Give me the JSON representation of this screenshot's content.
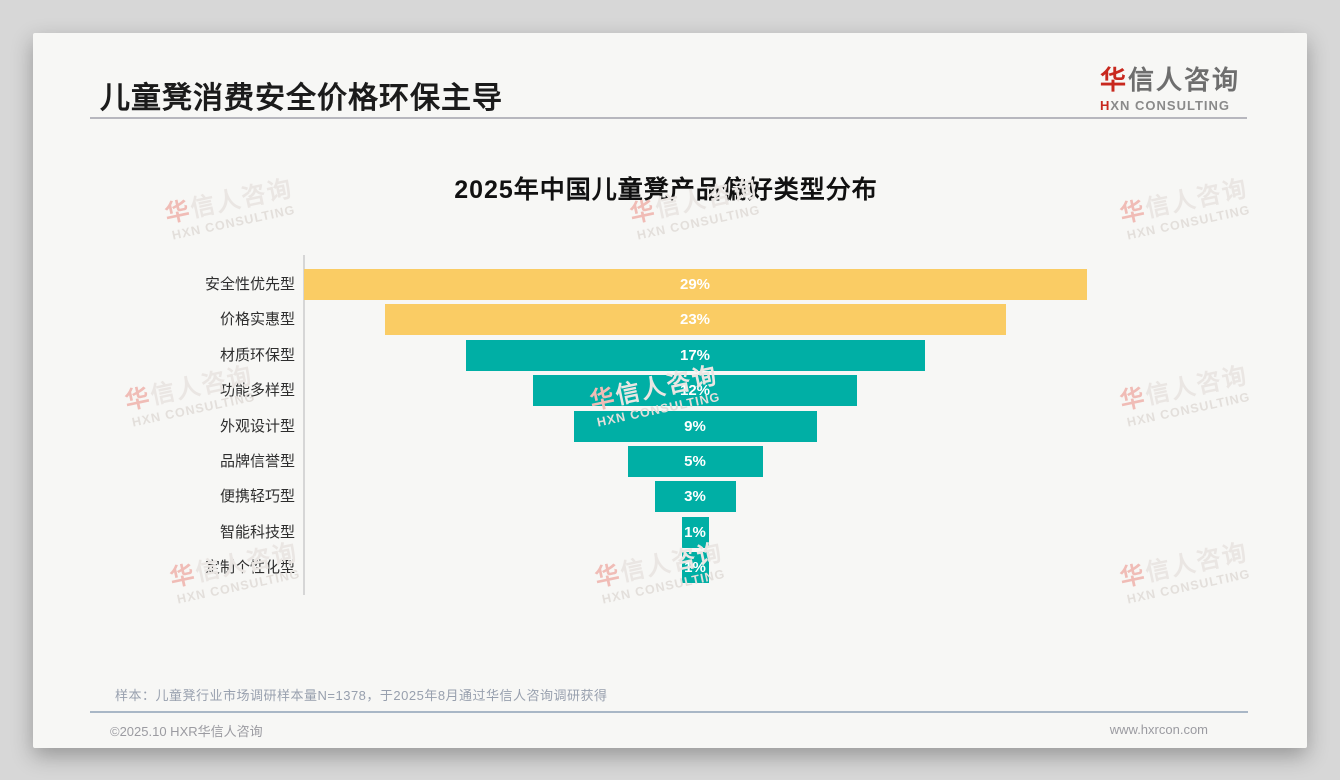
{
  "header": {
    "title": "儿童凳消费安全价格环保主导"
  },
  "logo": {
    "zh_first": "华",
    "zh_rest": "信人咨询",
    "en_first": "H",
    "en_rest": "XN CONSULTING"
  },
  "watermark": {
    "zh_first": "华",
    "zh_rest": "信人咨询",
    "en": "HXN CONSULTING"
  },
  "chart_data": {
    "type": "bar",
    "variant": "horizontal-centered-funnel",
    "title": "2025年中国儿童凳产品偏好类型分布",
    "categories": [
      "安全性优先型",
      "价格实惠型",
      "材质环保型",
      "功能多样型",
      "外观设计型",
      "品牌信誉型",
      "便携轻巧型",
      "智能科技型",
      "定制个性化型"
    ],
    "values": [
      29,
      23,
      17,
      12,
      9,
      5,
      3,
      1,
      1
    ],
    "value_labels": [
      "29%",
      "23%",
      "17%",
      "12%",
      "9%",
      "5%",
      "3%",
      "1%",
      "1%"
    ],
    "bar_colors": [
      "#FACC64",
      "#FACC64",
      "#00AFA5",
      "#00AFA5",
      "#00AFA5",
      "#00AFA5",
      "#00AFA5",
      "#00AFA5",
      "#00AFA5"
    ],
    "colors": {
      "yellow": "#FACC64",
      "teal": "#00AFA5",
      "value_text": "#ffffff"
    },
    "unit": "%",
    "xlim": [
      0,
      29
    ],
    "grid": false,
    "legend": false,
    "orientation": "bars grow symmetrically from center, category axis on left"
  },
  "footnote": "样本：儿童凳行业市场调研样本量N=1378，于2025年8月通过华信人咨询调研获得",
  "footer": {
    "left": "©2025.10 HXR华信人咨询",
    "right": "www.hxrcon.com"
  }
}
